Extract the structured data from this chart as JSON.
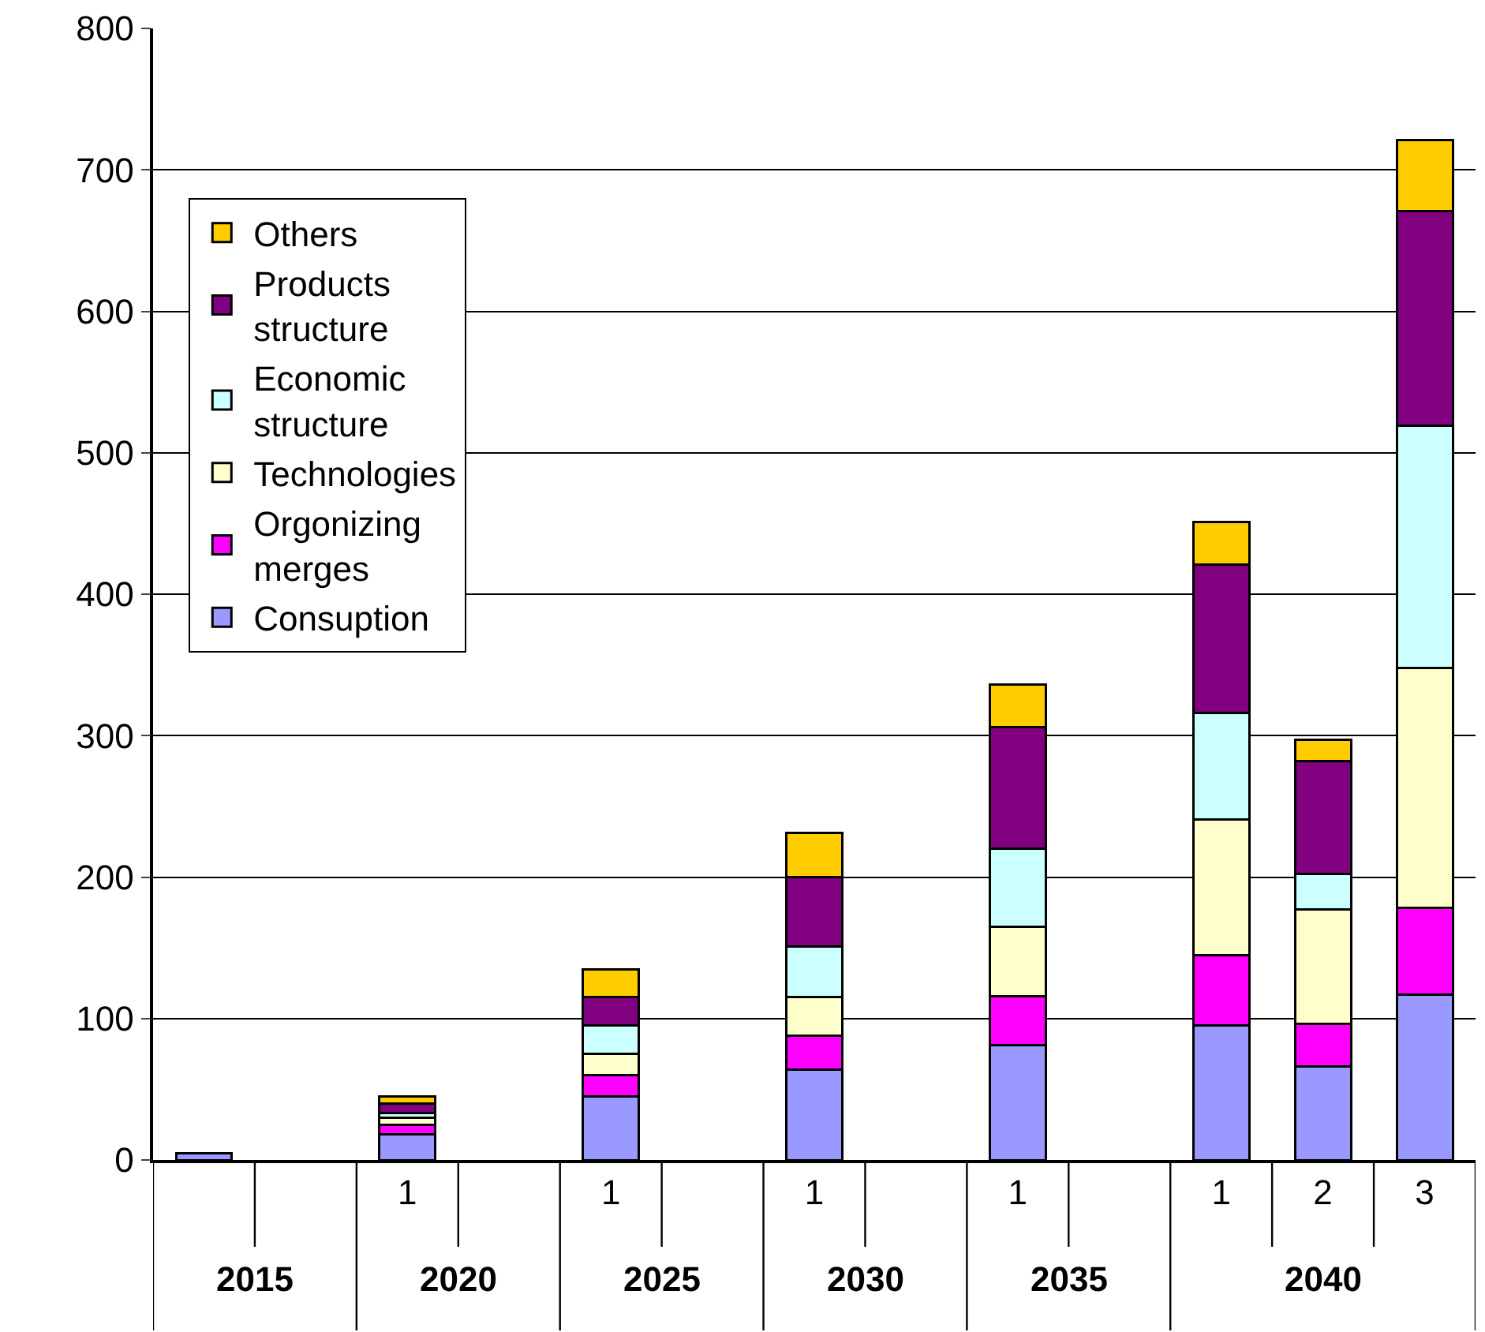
{
  "chart_data": {
    "type": "bar",
    "stacked": true,
    "categories": [
      null,
      null,
      "1",
      null,
      "1",
      null,
      "1",
      null,
      "1",
      null,
      "1",
      "2",
      "3"
    ],
    "annotations": [
      "2015",
      "2020",
      "2025",
      "2030",
      "2035",
      "2040"
    ],
    "series": [
      {
        "name": "Consuption",
        "color": "#9999ff",
        "values": [
          5,
          null,
          18,
          null,
          45,
          null,
          64,
          null,
          81,
          null,
          95,
          66,
          117
        ]
      },
      {
        "name": "Orgonizing merges",
        "color": "#ff00ff",
        "values": [
          null,
          null,
          7,
          null,
          15,
          null,
          24,
          null,
          35,
          null,
          50,
          30,
          61
        ]
      },
      {
        "name": "Technologies",
        "color": "#ffffcc",
        "values": [
          null,
          null,
          5,
          null,
          15,
          null,
          27,
          null,
          49,
          null,
          96,
          81,
          170
        ]
      },
      {
        "name": "Economic structure",
        "color": "#ccffff",
        "values": [
          null,
          null,
          3,
          null,
          20,
          null,
          36,
          null,
          55,
          null,
          75,
          25,
          171
        ]
      },
      {
        "name": "Products structure",
        "color": "#800080",
        "values": [
          null,
          null,
          7,
          null,
          20,
          null,
          49,
          null,
          86,
          null,
          105,
          80,
          152
        ]
      },
      {
        "name": "Others",
        "color": "#ffcc00",
        "values": [
          null,
          null,
          5,
          null,
          20,
          null,
          31,
          null,
          30,
          null,
          30,
          15,
          50
        ]
      }
    ],
    "ylim": [
      0,
      800
    ],
    "yticks": [
      0,
      100,
      200,
      300,
      400,
      500,
      600,
      700,
      800
    ],
    "grid": "y",
    "legend": "top left"
  }
}
